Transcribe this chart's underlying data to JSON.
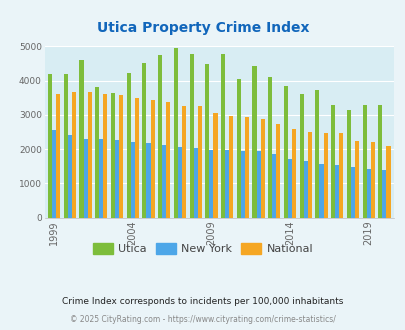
{
  "title": "Utica Property Crime Index",
  "years": [
    1999,
    2000,
    2001,
    2002,
    2003,
    2004,
    2005,
    2006,
    2007,
    2008,
    2009,
    2010,
    2011,
    2012,
    2013,
    2014,
    2015,
    2016,
    2017,
    2018,
    2019,
    2020
  ],
  "utica": [
    4180,
    4180,
    4600,
    3820,
    3650,
    4220,
    4500,
    4750,
    4950,
    4780,
    4480,
    4780,
    4030,
    4420,
    4100,
    3840,
    3600,
    3730,
    3290,
    3140,
    3280,
    3300
  ],
  "newyork": [
    2550,
    2400,
    2310,
    2310,
    2270,
    2220,
    2170,
    2110,
    2060,
    2020,
    1980,
    1970,
    1940,
    1960,
    1870,
    1720,
    1650,
    1570,
    1530,
    1480,
    1420,
    1390
  ],
  "national": [
    3600,
    3680,
    3680,
    3620,
    3590,
    3490,
    3440,
    3370,
    3270,
    3260,
    3040,
    2960,
    2930,
    2880,
    2740,
    2580,
    2500,
    2480,
    2460,
    2230,
    2200,
    2100
  ],
  "utica_color": "#7dbd3b",
  "newyork_color": "#4da6e8",
  "national_color": "#f5a623",
  "bg_color": "#eaf4f8",
  "plot_bg": "#d8edf3",
  "ylim": [
    0,
    5000
  ],
  "yticks": [
    0,
    1000,
    2000,
    3000,
    4000,
    5000
  ],
  "xtick_years": [
    1999,
    2004,
    2009,
    2014,
    2019
  ],
  "subtitle": "Crime Index corresponds to incidents per 100,000 inhabitants",
  "footer": "© 2025 CityRating.com - https://www.cityrating.com/crime-statistics/",
  "legend_labels": [
    "Utica",
    "New York",
    "National"
  ]
}
